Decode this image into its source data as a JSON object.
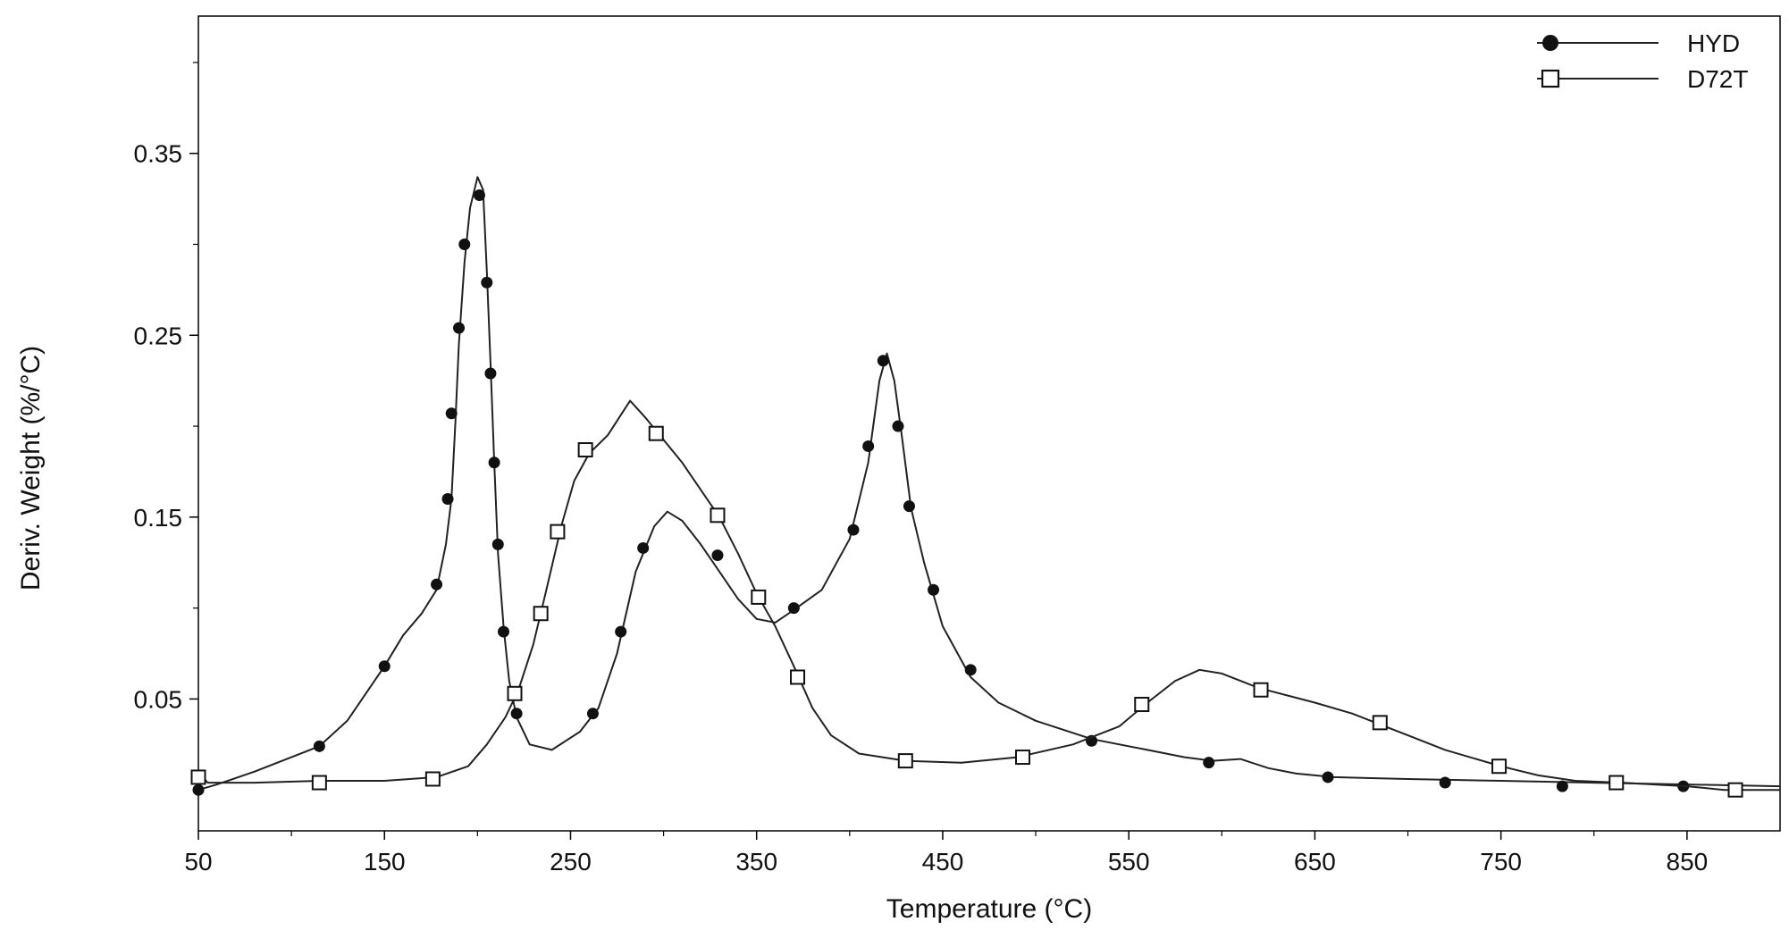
{
  "chart_data": {
    "type": "line",
    "xlabel": "Temperature (°C)",
    "ylabel": "Deriv. Weight (%/°C)",
    "xlim": [
      50,
      900
    ],
    "ylim": [
      -0.0225,
      0.4255
    ],
    "x_ticks": [
      50,
      150,
      250,
      350,
      450,
      550,
      650,
      750,
      850
    ],
    "y_ticks": [
      0.05,
      0.15,
      0.25,
      0.35
    ],
    "grid": false,
    "legend_position": "top-right",
    "colors": {
      "line": "#222222",
      "axis": "#000000",
      "background": "#ffffff"
    },
    "series": [
      {
        "name": "HYD",
        "marker": "filled-circle",
        "curve": [
          [
            50,
            0.0
          ],
          [
            60,
            0.003
          ],
          [
            80,
            0.01
          ],
          [
            100,
            0.018
          ],
          [
            115,
            0.024
          ],
          [
            130,
            0.038
          ],
          [
            150,
            0.068
          ],
          [
            160,
            0.085
          ],
          [
            170,
            0.097
          ],
          [
            178,
            0.11
          ],
          [
            183,
            0.135
          ],
          [
            186,
            0.16
          ],
          [
            188,
            0.2
          ],
          [
            190,
            0.245
          ],
          [
            193,
            0.29
          ],
          [
            196,
            0.32
          ],
          [
            200,
            0.337
          ],
          [
            203,
            0.33
          ],
          [
            205,
            0.285
          ],
          [
            207,
            0.235
          ],
          [
            209,
            0.18
          ],
          [
            211,
            0.13
          ],
          [
            214,
            0.09
          ],
          [
            217,
            0.06
          ],
          [
            221,
            0.04
          ],
          [
            228,
            0.025
          ],
          [
            240,
            0.022
          ],
          [
            255,
            0.032
          ],
          [
            265,
            0.045
          ],
          [
            275,
            0.075
          ],
          [
            285,
            0.12
          ],
          [
            295,
            0.145
          ],
          [
            302,
            0.153
          ],
          [
            310,
            0.148
          ],
          [
            320,
            0.135
          ],
          [
            330,
            0.12
          ],
          [
            340,
            0.105
          ],
          [
            350,
            0.094
          ],
          [
            360,
            0.092
          ],
          [
            370,
            0.099
          ],
          [
            385,
            0.11
          ],
          [
            400,
            0.138
          ],
          [
            410,
            0.18
          ],
          [
            416,
            0.225
          ],
          [
            420,
            0.24
          ],
          [
            424,
            0.225
          ],
          [
            428,
            0.195
          ],
          [
            433,
            0.155
          ],
          [
            440,
            0.125
          ],
          [
            450,
            0.09
          ],
          [
            465,
            0.062
          ],
          [
            480,
            0.048
          ],
          [
            500,
            0.038
          ],
          [
            530,
            0.028
          ],
          [
            560,
            0.022
          ],
          [
            580,
            0.018
          ],
          [
            595,
            0.016
          ],
          [
            610,
            0.017
          ],
          [
            625,
            0.012
          ],
          [
            640,
            0.009
          ],
          [
            660,
            0.007
          ],
          [
            700,
            0.006
          ],
          [
            750,
            0.005
          ],
          [
            800,
            0.004
          ],
          [
            850,
            0.003
          ],
          [
            900,
            0.002
          ]
        ],
        "markers": [
          [
            50,
            0.0
          ],
          [
            115,
            0.024
          ],
          [
            150,
            0.068
          ],
          [
            178,
            0.113
          ],
          [
            184,
            0.16
          ],
          [
            186,
            0.207
          ],
          [
            190,
            0.254
          ],
          [
            193,
            0.3
          ],
          [
            201,
            0.327
          ],
          [
            205,
            0.279
          ],
          [
            207,
            0.229
          ],
          [
            209,
            0.18
          ],
          [
            211,
            0.135
          ],
          [
            214,
            0.087
          ],
          [
            221,
            0.042
          ],
          [
            262,
            0.042
          ],
          [
            277,
            0.087
          ],
          [
            289,
            0.133
          ],
          [
            329,
            0.129
          ],
          [
            370,
            0.1
          ],
          [
            402,
            0.143
          ],
          [
            410,
            0.189
          ],
          [
            418,
            0.236
          ],
          [
            426,
            0.2
          ],
          [
            432,
            0.156
          ],
          [
            445,
            0.11
          ],
          [
            465,
            0.066
          ],
          [
            530,
            0.027
          ],
          [
            593,
            0.015
          ],
          [
            657,
            0.007
          ],
          [
            720,
            0.004
          ],
          [
            783,
            0.002
          ],
          [
            848,
            0.002
          ]
        ]
      },
      {
        "name": "D72T",
        "marker": "open-square",
        "curve": [
          [
            50,
            0.01
          ],
          [
            55,
            0.004
          ],
          [
            80,
            0.004
          ],
          [
            115,
            0.005
          ],
          [
            150,
            0.005
          ],
          [
            178,
            0.007
          ],
          [
            195,
            0.013
          ],
          [
            205,
            0.025
          ],
          [
            215,
            0.04
          ],
          [
            222,
            0.055
          ],
          [
            230,
            0.08
          ],
          [
            237,
            0.11
          ],
          [
            245,
            0.145
          ],
          [
            252,
            0.17
          ],
          [
            260,
            0.185
          ],
          [
            270,
            0.195
          ],
          [
            282,
            0.214
          ],
          [
            290,
            0.205
          ],
          [
            298,
            0.195
          ],
          [
            310,
            0.18
          ],
          [
            320,
            0.165
          ],
          [
            330,
            0.15
          ],
          [
            340,
            0.13
          ],
          [
            350,
            0.108
          ],
          [
            360,
            0.09
          ],
          [
            370,
            0.068
          ],
          [
            380,
            0.045
          ],
          [
            390,
            0.03
          ],
          [
            405,
            0.02
          ],
          [
            430,
            0.016
          ],
          [
            460,
            0.015
          ],
          [
            490,
            0.018
          ],
          [
            520,
            0.025
          ],
          [
            545,
            0.035
          ],
          [
            560,
            0.048
          ],
          [
            575,
            0.06
          ],
          [
            588,
            0.066
          ],
          [
            600,
            0.064
          ],
          [
            620,
            0.056
          ],
          [
            650,
            0.048
          ],
          [
            670,
            0.042
          ],
          [
            685,
            0.036
          ],
          [
            700,
            0.03
          ],
          [
            720,
            0.022
          ],
          [
            750,
            0.013
          ],
          [
            770,
            0.008
          ],
          [
            790,
            0.005
          ],
          [
            815,
            0.004
          ],
          [
            850,
            0.002
          ],
          [
            870,
            0.0
          ],
          [
            900,
            0.0
          ]
        ],
        "markers": [
          [
            50,
            0.007
          ],
          [
            115,
            0.004
          ],
          [
            176,
            0.006
          ],
          [
            220,
            0.053
          ],
          [
            234,
            0.097
          ],
          [
            243,
            0.142
          ],
          [
            258,
            0.187
          ],
          [
            296,
            0.196
          ],
          [
            329,
            0.151
          ],
          [
            351,
            0.106
          ],
          [
            372,
            0.062
          ],
          [
            430,
            0.016
          ],
          [
            493,
            0.018
          ],
          [
            557,
            0.047
          ],
          [
            621,
            0.055
          ],
          [
            685,
            0.037
          ],
          [
            749,
            0.013
          ],
          [
            812,
            0.004
          ],
          [
            876,
            0.0
          ]
        ]
      }
    ]
  }
}
